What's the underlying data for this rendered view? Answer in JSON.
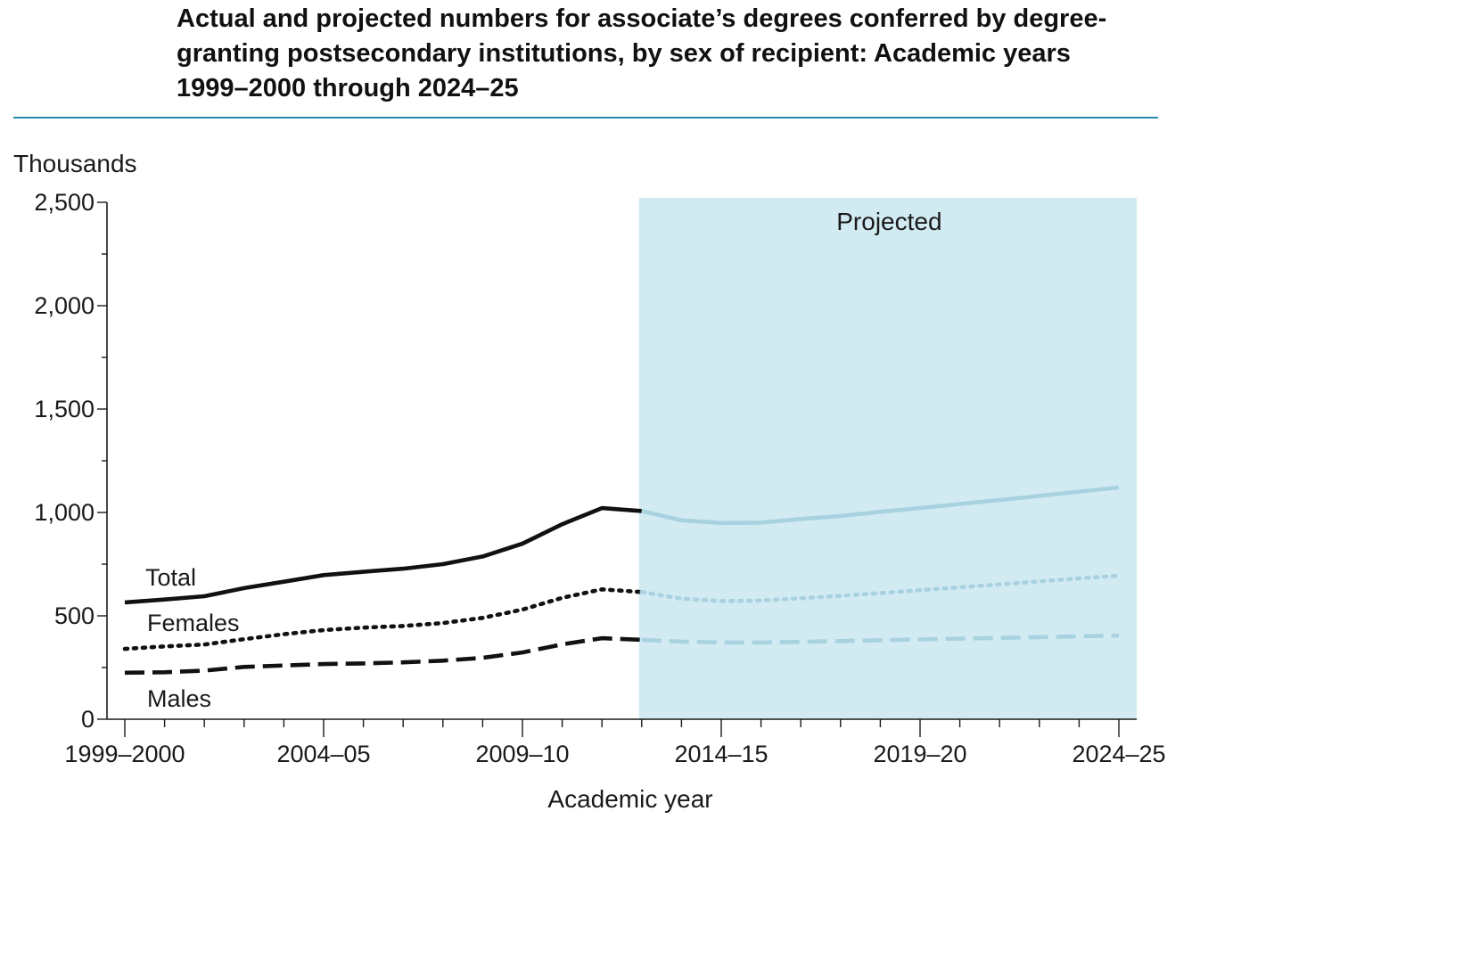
{
  "chart_data": {
    "type": "line",
    "title": "Actual and projected numbers for associate’s degrees conferred by degree-granting postsecondary institutions, by sex of recipient: Academic years 1999–2000 through 2024–25",
    "ylabel": "Thousands",
    "xlabel": "Academic year",
    "ylim": [
      0,
      2500
    ],
    "y_ticks": [
      0,
      500,
      1000,
      1500,
      2000,
      2500
    ],
    "y_tick_labels": [
      "0",
      "500",
      "1,000",
      "1,500",
      "2,000",
      "2,500"
    ],
    "x_tick_labels": [
      "1999–2000",
      "2004–05",
      "2009–10",
      "2014–15",
      "2019–20",
      "2024–25"
    ],
    "x_tick_label_indices": [
      0,
      5,
      10,
      15,
      20,
      25
    ],
    "categories": [
      "1999–2000",
      "2000–01",
      "2001–02",
      "2002–03",
      "2003–04",
      "2004–05",
      "2005–06",
      "2006–07",
      "2007–08",
      "2008–09",
      "2009–10",
      "2010–11",
      "2011–12",
      "2012–13",
      "2013–14",
      "2014–15",
      "2015–16",
      "2016–17",
      "2017–18",
      "2018–19",
      "2019–20",
      "2020–21",
      "2021–22",
      "2022–23",
      "2023–24",
      "2024–25"
    ],
    "projection_start_index": 13,
    "projection_label": "Projected",
    "grid": false,
    "series": [
      {
        "name": "Total",
        "style": "solid",
        "values": [
          565,
          579,
          595,
          634,
          665,
          697,
          713,
          728,
          750,
          787,
          849,
          943,
          1021,
          1007,
          962,
          949,
          951,
          968,
          983,
          1003,
          1021,
          1041,
          1060,
          1080,
          1101,
          1121
        ]
      },
      {
        "name": "Females",
        "style": "dotted",
        "values": [
          340,
          352,
          361,
          387,
          411,
          431,
          443,
          451,
          465,
          490,
          530,
          587,
          628,
          615,
          583,
          571,
          574,
          585,
          597,
          610,
          624,
          638,
          652,
          667,
          681,
          694
        ]
      },
      {
        "name": "Males",
        "style": "dashed",
        "values": [
          225,
          227,
          235,
          253,
          260,
          267,
          270,
          275,
          283,
          297,
          323,
          362,
          392,
          384,
          375,
          371,
          371,
          374,
          378,
          382,
          386,
          390,
          393,
          397,
          401,
          405
        ]
      }
    ],
    "colors": {
      "actual": "#111111",
      "projected": "#a9d2e0",
      "projected_band": "#d2ebf2",
      "title_rule": "#2a8ab0",
      "axis": "#1a1a1a"
    }
  }
}
